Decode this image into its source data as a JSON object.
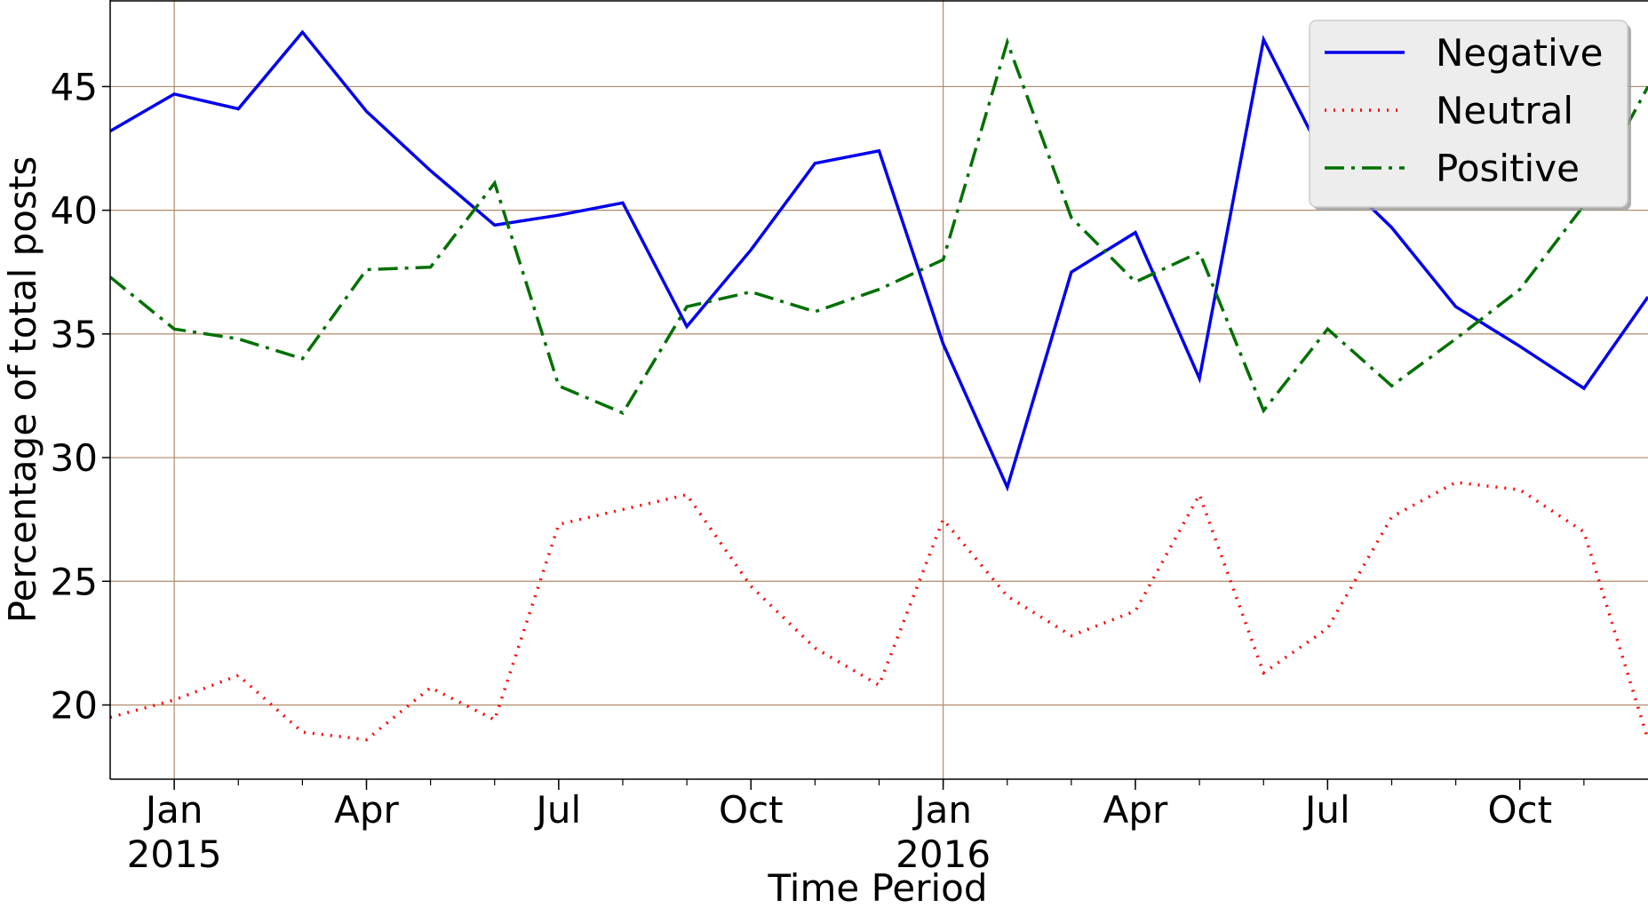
{
  "chart_data": {
    "type": "line",
    "xlabel": "Time Period",
    "ylabel": "Percentage of total posts",
    "x": [
      "2014-12",
      "2015-01",
      "2015-02",
      "2015-03",
      "2015-04",
      "2015-05",
      "2015-06",
      "2015-07",
      "2015-08",
      "2015-09",
      "2015-10",
      "2015-11",
      "2015-12",
      "2016-01",
      "2016-02",
      "2016-03",
      "2016-04",
      "2016-05",
      "2016-06",
      "2016-07",
      "2016-08",
      "2016-09",
      "2016-10",
      "2016-11",
      "2016-12"
    ],
    "x_range": [
      "2014-12",
      "2016-12"
    ],
    "ylim": [
      17,
      48.5
    ],
    "y_ticks": [
      20,
      25,
      30,
      35,
      40,
      45
    ],
    "x_ticks": [
      {
        "date": "2015-01",
        "label": "Jan",
        "year": "2015"
      },
      {
        "date": "2015-04",
        "label": "Apr",
        "year": ""
      },
      {
        "date": "2015-07",
        "label": "Jul",
        "year": ""
      },
      {
        "date": "2015-10",
        "label": "Oct",
        "year": ""
      },
      {
        "date": "2016-01",
        "label": "Jan",
        "year": "2016"
      },
      {
        "date": "2016-04",
        "label": "Apr",
        "year": ""
      },
      {
        "date": "2016-07",
        "label": "Jul",
        "year": ""
      },
      {
        "date": "2016-10",
        "label": "Oct",
        "year": ""
      }
    ],
    "grid": true,
    "legend_position": "top-right",
    "series": [
      {
        "name": "Negative",
        "color": "#0000ee",
        "style": "solid",
        "values": [
          43.2,
          44.7,
          44.1,
          47.2,
          44.0,
          41.6,
          39.4,
          39.8,
          40.3,
          35.3,
          38.4,
          41.9,
          42.4,
          34.6,
          28.8,
          37.5,
          39.1,
          33.2,
          46.9,
          41.8,
          39.3,
          36.1,
          34.5,
          32.8,
          36.5
        ]
      },
      {
        "name": "Neutral",
        "color": "#ff0000",
        "style": "dotted",
        "values": [
          19.5,
          20.2,
          21.2,
          18.9,
          18.6,
          20.7,
          19.4,
          27.3,
          27.9,
          28.5,
          24.8,
          22.3,
          20.8,
          27.5,
          24.4,
          22.8,
          23.8,
          28.5,
          21.3,
          23.1,
          27.6,
          29.0,
          28.7,
          27.0,
          18.6
        ]
      },
      {
        "name": "Positive",
        "color": "#007000",
        "style": "dashdot",
        "values": [
          37.3,
          35.2,
          34.8,
          34.0,
          37.6,
          37.7,
          41.1,
          32.9,
          31.8,
          36.1,
          36.7,
          35.9,
          36.8,
          38.0,
          46.8,
          39.7,
          37.1,
          38.3,
          31.9,
          35.2,
          32.9,
          34.8,
          36.8,
          40.2,
          45.0
        ]
      }
    ]
  }
}
